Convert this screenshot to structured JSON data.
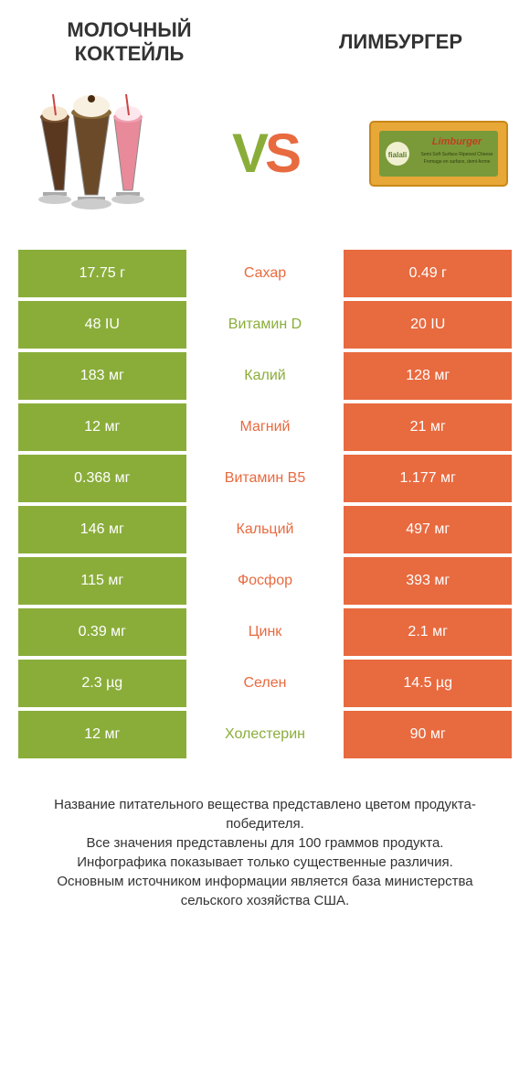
{
  "header": {
    "left_title": "МОЛОЧНЫЙ КОКТЕЙЛЬ",
    "right_title": "ЛИМБУРГЕР",
    "vs_v": "V",
    "vs_s": "S"
  },
  "colors": {
    "green": "#8aad3a",
    "orange": "#e86a3f",
    "text": "#333333",
    "white": "#ffffff"
  },
  "rows": [
    {
      "left": "17.75 г",
      "mid": "Сахар",
      "right": "0.49 г",
      "winner": "orange"
    },
    {
      "left": "48 IU",
      "mid": "Витамин D",
      "right": "20 IU",
      "winner": "green"
    },
    {
      "left": "183 мг",
      "mid": "Калий",
      "right": "128 мг",
      "winner": "green"
    },
    {
      "left": "12 мг",
      "mid": "Магний",
      "right": "21 мг",
      "winner": "orange"
    },
    {
      "left": "0.368 мг",
      "mid": "Витамин B5",
      "right": "1.177 мг",
      "winner": "orange"
    },
    {
      "left": "146 мг",
      "mid": "Кальций",
      "right": "497 мг",
      "winner": "orange"
    },
    {
      "left": "115 мг",
      "mid": "Фосфор",
      "right": "393 мг",
      "winner": "orange"
    },
    {
      "left": "0.39 мг",
      "mid": "Цинк",
      "right": "2.1 мг",
      "winner": "orange"
    },
    {
      "left": "2.3 µg",
      "mid": "Селен",
      "right": "14.5 µg",
      "winner": "orange"
    },
    {
      "left": "12 мг",
      "mid": "Холестерин",
      "right": "90 мг",
      "winner": "green"
    }
  ],
  "footnote": "Название питательного вещества представлено цветом продукта-победителя.\nВсе значения представлены для 100 граммов продукта.\nИнфографика показывает только существенные различия.\nОсновным источником информации является база министерства сельского хозяйства США."
}
